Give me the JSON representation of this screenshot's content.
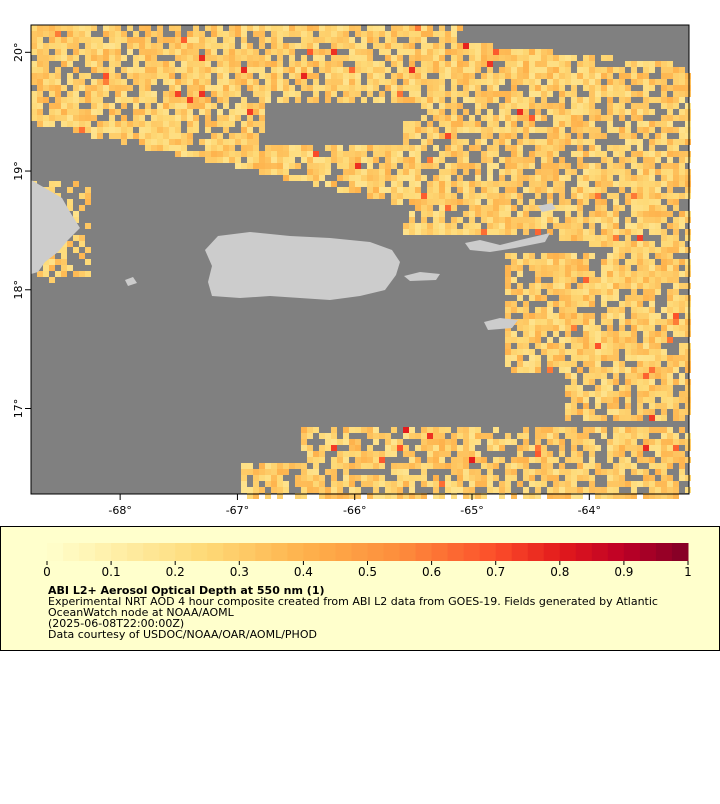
{
  "map": {
    "xlim": [
      -68.76,
      -63.15
    ],
    "ylim": [
      16.28,
      20.23
    ],
    "xticks": [
      {
        "value": -68,
        "label": "-68°"
      },
      {
        "value": -67,
        "label": "-67°"
      },
      {
        "value": -66,
        "label": "-66°"
      },
      {
        "value": -65,
        "label": "-65°"
      },
      {
        "value": -64,
        "label": "-64°"
      }
    ],
    "yticks": [
      {
        "value": 17,
        "label": "17°"
      },
      {
        "value": 18,
        "label": "18°"
      },
      {
        "value": 19,
        "label": "19°"
      },
      {
        "value": 20,
        "label": "20°"
      }
    ]
  },
  "colorbar": {
    "lim": [
      0,
      1
    ],
    "ticks": [
      0,
      0.1,
      0.2,
      0.3,
      0.4,
      0.5,
      0.6,
      0.7,
      0.8,
      0.9,
      1
    ]
  },
  "legend": {
    "title": "ABI L2+ Aerosol Optical Depth at 550 nm (1)",
    "lines": [
      "Experimental NRT AOD 4 hour composite created from ABI L2 data from GOES-19. Fields generated by Atlantic",
      "OceanWatch node at NOAA/AOML",
      "(2025-06-08T22:00:00Z)",
      "Data courtesy of USDOC/NOAA/OAR/AOML/PHOD"
    ]
  }
}
